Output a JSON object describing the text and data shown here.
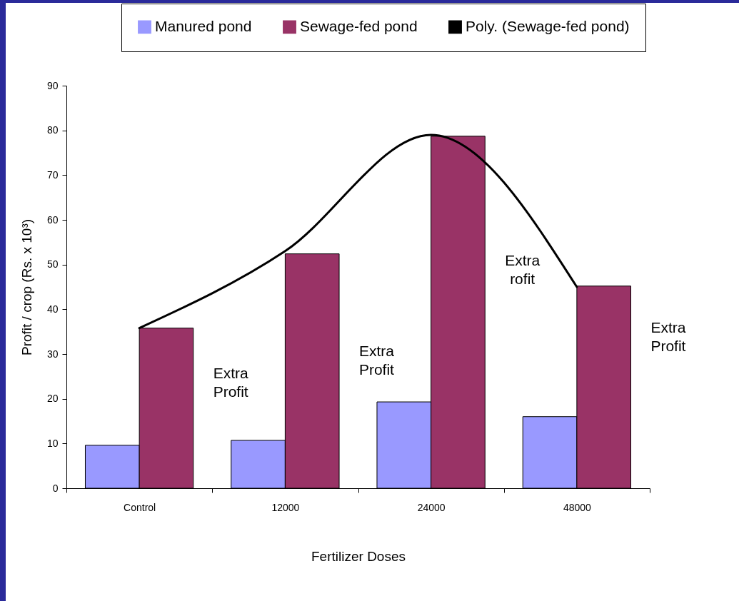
{
  "chart_data": {
    "type": "bar",
    "xlabel": "Fertilizer Doses",
    "ylabel": "Profit / crop (Rs. x 10³)",
    "categories": [
      "Control",
      "12000",
      "24000",
      "48000"
    ],
    "series": [
      {
        "name": "Manured pond",
        "color": "#9999ff",
        "values": [
          9.6,
          10.7,
          19.3,
          16.0
        ]
      },
      {
        "name": "Sewage-fed pond",
        "color": "#993366",
        "values": [
          35.8,
          52.4,
          78.7,
          45.2
        ]
      },
      {
        "name": "Poly. (Sewage-fed pond)",
        "type": "line",
        "color": "#000000",
        "values": [
          35.8,
          53,
          79,
          45
        ]
      }
    ],
    "ylim": [
      0,
      90
    ],
    "yticks": [
      0,
      10,
      20,
      30,
      40,
      50,
      60,
      70,
      80,
      90
    ],
    "grid": false,
    "legend": "top right",
    "annotations": [
      "Extra Profit",
      "Extra Profit",
      "Extra rofit",
      "Extra Profit"
    ]
  }
}
